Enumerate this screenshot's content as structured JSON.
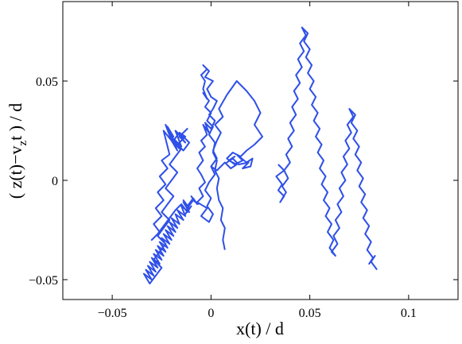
{
  "chart_data": {
    "type": "line",
    "title": "",
    "xlabel": "x(t) / d",
    "ylabel_parts": [
      "( z(t)−v",
      "z",
      "t ) / d"
    ],
    "xlim": [
      -0.075,
      0.125
    ],
    "ylim": [
      -0.06,
      0.09
    ],
    "grid": false,
    "legend": "none",
    "xticks": [
      -0.05,
      0,
      0.05,
      0.1
    ],
    "xtick_labels": [
      "−0.05",
      "0",
      "0.05",
      "0.1"
    ],
    "yticks": [
      -0.05,
      0,
      0.05
    ],
    "ytick_labels": [
      "−0.05",
      "0",
      "0.05"
    ],
    "line_color": "#2f50e8",
    "series": [
      {
        "x": [
          0.007,
          0.006,
          0.007,
          0.005,
          0.006,
          0.004,
          0.003,
          0.004,
          0.002,
          0.003,
          0.001,
          0.002,
          -0.001,
          0.001,
          -0.002,
          0.0,
          -0.003,
          -0.001,
          -0.004,
          -0.002,
          -0.004,
          -0.003,
          -0.005,
          -0.002,
          -0.004,
          -0.001,
          -0.003,
          0.001,
          -0.002,
          0.0,
          0.003,
          0.001,
          -0.001,
          0.002,
          0.0,
          -0.003,
          -0.001,
          -0.004,
          -0.002,
          -0.005,
          -0.003,
          -0.006,
          -0.004,
          -0.007,
          -0.005,
          -0.003,
          -0.006,
          -0.004,
          -0.007,
          -0.002,
          -0.005,
          -0.001,
          0.001,
          -0.002,
          0.0,
          -0.003,
          -0.001,
          0.002,
          0.0,
          0.003,
          0.001,
          0.003,
          0.005,
          0.002,
          0.006,
          0.004,
          0.008,
          0.013,
          0.018,
          0.022,
          0.025,
          0.022,
          0.026,
          0.022,
          0.018,
          0.015,
          0.011,
          0.008,
          0.012,
          0.016,
          0.013,
          0.018,
          0.021,
          0.02,
          0.016,
          0.019,
          0.014,
          0.011,
          0.008,
          0.012,
          0.009,
          0.013,
          0.01,
          0.007,
          0.005,
          0.003,
          0.0
        ],
        "y": [
          -0.035,
          -0.03,
          -0.024,
          -0.02,
          -0.014,
          -0.01,
          -0.004,
          0.001,
          0.005,
          0.01,
          0.014,
          0.019,
          0.023,
          0.027,
          0.03,
          0.034,
          0.037,
          0.04,
          0.044,
          0.041,
          0.046,
          0.05,
          0.053,
          0.056,
          0.058,
          0.055,
          0.052,
          0.05,
          0.046,
          0.042,
          0.04,
          0.036,
          0.033,
          0.03,
          0.026,
          0.029,
          0.024,
          0.028,
          0.023,
          0.02,
          0.017,
          0.014,
          0.01,
          0.006,
          0.003,
          -0.001,
          -0.004,
          -0.008,
          -0.011,
          -0.014,
          -0.018,
          -0.021,
          -0.017,
          -0.013,
          -0.009,
          -0.005,
          -0.001,
          0.003,
          0.007,
          0.011,
          0.015,
          0.02,
          0.024,
          0.028,
          0.032,
          0.036,
          0.043,
          0.05,
          0.045,
          0.04,
          0.034,
          0.028,
          0.022,
          0.018,
          0.015,
          0.012,
          0.014,
          0.011,
          0.008,
          0.01,
          0.013,
          0.009,
          0.011,
          0.007,
          0.006,
          0.009,
          0.008,
          0.011,
          0.009,
          0.012,
          0.01,
          0.008,
          0.006,
          0.009,
          0.007,
          0.005,
          0.007
        ]
      },
      {
        "x": [
          -0.006,
          -0.009,
          -0.012,
          -0.014,
          -0.011,
          -0.015,
          -0.013,
          -0.017,
          -0.014,
          -0.018,
          -0.016,
          -0.02,
          -0.017,
          -0.021,
          -0.018,
          -0.022,
          -0.019,
          -0.023,
          -0.02,
          -0.024,
          -0.021,
          -0.025,
          -0.022,
          -0.026,
          -0.023,
          -0.027,
          -0.024,
          -0.028,
          -0.025,
          -0.029,
          -0.026,
          -0.03,
          -0.027,
          -0.031,
          -0.028,
          -0.032,
          -0.029,
          -0.033,
          -0.03,
          -0.034,
          -0.031,
          -0.028,
          -0.025,
          -0.029,
          -0.026,
          -0.023,
          -0.027,
          -0.024,
          -0.021,
          -0.025,
          -0.022,
          -0.019,
          -0.023,
          -0.02,
          -0.017,
          -0.021,
          -0.018,
          -0.015,
          -0.019,
          -0.016,
          -0.013,
          -0.017,
          -0.014,
          -0.011,
          -0.015,
          -0.012,
          -0.016,
          -0.013,
          -0.017,
          -0.014,
          -0.018,
          -0.015,
          -0.019,
          -0.016,
          -0.02,
          -0.017,
          -0.021,
          -0.018,
          -0.022,
          -0.019,
          -0.023,
          -0.02,
          -0.024,
          -0.021,
          -0.025,
          -0.022,
          -0.026,
          -0.023,
          -0.027,
          -0.024,
          -0.028,
          -0.025,
          -0.029,
          -0.026,
          -0.03,
          -0.027,
          -0.024,
          -0.021,
          -0.018,
          -0.015,
          -0.012,
          -0.01,
          -0.013,
          -0.011,
          -0.014,
          -0.012,
          -0.009,
          -0.007,
          -0.01,
          -0.008
        ],
        "y": [
          -0.012,
          -0.01,
          -0.014,
          -0.011,
          -0.016,
          -0.013,
          -0.018,
          -0.015,
          -0.02,
          -0.017,
          -0.022,
          -0.019,
          -0.024,
          -0.021,
          -0.026,
          -0.023,
          -0.028,
          -0.025,
          -0.03,
          -0.027,
          -0.032,
          -0.029,
          -0.034,
          -0.031,
          -0.036,
          -0.033,
          -0.038,
          -0.035,
          -0.04,
          -0.037,
          -0.042,
          -0.039,
          -0.044,
          -0.041,
          -0.046,
          -0.043,
          -0.048,
          -0.045,
          -0.05,
          -0.047,
          -0.052,
          -0.048,
          -0.044,
          -0.04,
          -0.036,
          -0.032,
          -0.028,
          -0.024,
          -0.02,
          -0.016,
          -0.012,
          -0.008,
          -0.004,
          0.0,
          0.004,
          0.008,
          0.012,
          0.016,
          0.02,
          0.024,
          0.022,
          0.018,
          0.015,
          0.019,
          0.023,
          0.026,
          0.022,
          0.019,
          0.024,
          0.021,
          0.025,
          0.017,
          0.021,
          0.016,
          0.02,
          0.015,
          0.024,
          0.018,
          0.027,
          0.022,
          0.028,
          0.02,
          0.025,
          0.013,
          0.01,
          0.006,
          0.002,
          -0.002,
          -0.006,
          -0.01,
          -0.014,
          -0.018,
          -0.022,
          -0.026,
          -0.03,
          -0.027,
          -0.023,
          -0.019,
          -0.015,
          -0.012,
          -0.016,
          -0.013,
          -0.017,
          -0.014,
          -0.01,
          -0.013,
          -0.009,
          -0.012,
          -0.008,
          -0.011
        ]
      },
      {
        "x": [
          0.034,
          0.037,
          0.033,
          0.036,
          0.034,
          0.037,
          0.035,
          0.038,
          0.036,
          0.039,
          0.037,
          0.04,
          0.038,
          0.041,
          0.039,
          0.042,
          0.04,
          0.043,
          0.041,
          0.044,
          0.042,
          0.045,
          0.043,
          0.046,
          0.044,
          0.047,
          0.045,
          0.048,
          0.046,
          0.049,
          0.047,
          0.05,
          0.048,
          0.051,
          0.049,
          0.052,
          0.05,
          0.053,
          0.051,
          0.054,
          0.052,
          0.055,
          0.053,
          0.056,
          0.054,
          0.057,
          0.055,
          0.058,
          0.056,
          0.059,
          0.057,
          0.06,
          0.058,
          0.061,
          0.059,
          0.062,
          0.06,
          0.063,
          0.061,
          0.064,
          0.062,
          0.065,
          0.063,
          0.066,
          0.064,
          0.067,
          0.065,
          0.068,
          0.066,
          0.069,
          0.067,
          0.07,
          0.068,
          0.071,
          0.069,
          0.072,
          0.07,
          0.073,
          0.071,
          0.074,
          0.072,
          0.075,
          0.073,
          0.076,
          0.074,
          0.077,
          0.075,
          0.078,
          0.076,
          0.079,
          0.077,
          0.08,
          0.078,
          0.081,
          0.079,
          0.082,
          0.08,
          0.083,
          0.081,
          0.084
        ],
        "y": [
          0.008,
          0.005,
          0.002,
          -0.002,
          -0.005,
          -0.008,
          -0.011,
          -0.006,
          -0.003,
          0.001,
          0.005,
          0.009,
          0.013,
          0.017,
          0.021,
          0.025,
          0.029,
          0.033,
          0.037,
          0.041,
          0.045,
          0.049,
          0.053,
          0.057,
          0.061,
          0.065,
          0.069,
          0.073,
          0.077,
          0.074,
          0.07,
          0.066,
          0.062,
          0.058,
          0.054,
          0.05,
          0.046,
          0.042,
          0.038,
          0.034,
          0.03,
          0.026,
          0.022,
          0.018,
          0.014,
          0.01,
          0.006,
          0.002,
          -0.002,
          -0.006,
          -0.01,
          -0.014,
          -0.018,
          -0.022,
          -0.026,
          -0.03,
          -0.034,
          -0.038,
          -0.036,
          -0.032,
          -0.028,
          -0.024,
          -0.02,
          -0.016,
          -0.012,
          -0.008,
          -0.004,
          0.0,
          0.004,
          0.008,
          0.012,
          0.016,
          0.02,
          0.024,
          0.028,
          0.032,
          0.036,
          0.033,
          0.029,
          0.025,
          0.021,
          0.017,
          0.013,
          0.009,
          0.005,
          0.001,
          -0.003,
          -0.007,
          -0.011,
          -0.015,
          -0.019,
          -0.023,
          -0.027,
          -0.031,
          -0.035,
          -0.039,
          -0.042,
          -0.038,
          -0.041,
          -0.045
        ]
      }
    ]
  }
}
